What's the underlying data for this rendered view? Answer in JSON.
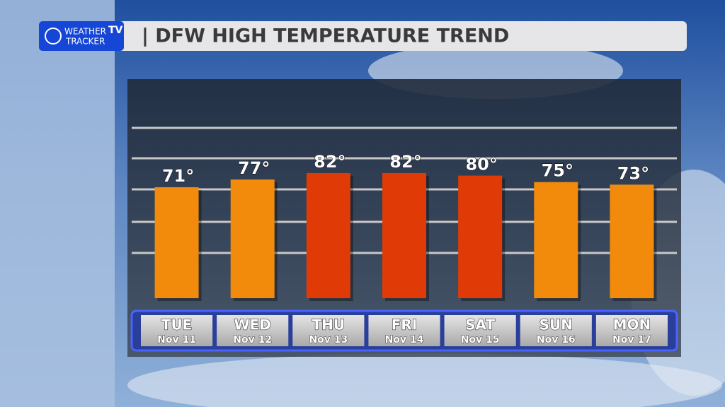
{
  "logo": {
    "line1": "WEATHER",
    "badge": "TV",
    "line2": "TRACKER"
  },
  "chart_data": {
    "type": "bar",
    "title": "| DFW HIGH TEMPERATURE TREND",
    "categories": [
      "TUE",
      "WED",
      "THU",
      "FRI",
      "SAT",
      "SUN",
      "MON"
    ],
    "dates": [
      "Nov 11",
      "Nov 12",
      "Nov 13",
      "Nov 14",
      "Nov 15",
      "Nov 16",
      "Nov 17"
    ],
    "values": [
      71,
      77,
      82,
      82,
      80,
      75,
      73
    ],
    "value_labels": [
      "71°",
      "77°",
      "82°",
      "82°",
      "80°",
      "75°",
      "73°"
    ],
    "colors": [
      "#f28a0c",
      "#f28a0c",
      "#e03b06",
      "#e03b06",
      "#e03b06",
      "#f28a0c",
      "#f28a0c"
    ],
    "ylim": [
      -15,
      117
    ]
  }
}
